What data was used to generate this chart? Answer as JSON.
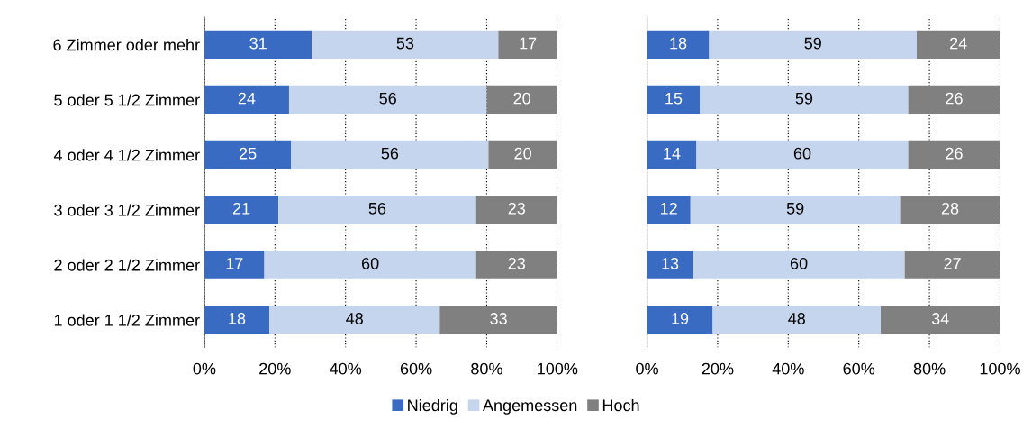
{
  "chart_data": [
    {
      "type": "bar",
      "orientation": "horizontal",
      "stacked": true,
      "categories": [
        "6 Zimmer oder mehr",
        "5 oder 5 1/2 Zimmer",
        "4 oder 4 1/2 Zimmer",
        "3 oder 3 1/2 Zimmer",
        "2 oder 2 1/2 Zimmer",
        "1 oder 1 1/2 Zimmer"
      ],
      "series": [
        {
          "name": "Niedrig",
          "color": "#3a6bc2",
          "values": [
            30.5,
            24,
            24.6,
            21,
            17,
            18.4
          ],
          "value_labels": [
            "31",
            "24",
            "25",
            "21",
            "17",
            "18"
          ]
        },
        {
          "name": "Angemessen",
          "color": "#c5d5ee",
          "values": [
            52.8,
            56,
            55.9,
            56,
            60,
            48.3
          ],
          "value_labels": [
            "53",
            "56",
            "56",
            "56",
            "60",
            "48"
          ]
        },
        {
          "name": "Hoch",
          "color": "#808080",
          "values": [
            16.7,
            20,
            19.5,
            23,
            23,
            33.3
          ],
          "value_labels": [
            "17",
            "20",
            "20",
            "23",
            "23",
            "33"
          ]
        }
      ],
      "xlim": [
        0,
        100
      ],
      "xticks": [
        {
          "value": 0,
          "label": "0%"
        },
        {
          "value": 20,
          "label": "20%"
        },
        {
          "value": 40,
          "label": "40%"
        },
        {
          "value": 60,
          "label": "60%"
        },
        {
          "value": 80,
          "label": "80%"
        },
        {
          "value": 100,
          "label": "100%"
        }
      ],
      "grid": "x",
      "legend": "bottom"
    },
    {
      "type": "bar",
      "orientation": "horizontal",
      "stacked": true,
      "categories": [
        null,
        null,
        null,
        null,
        null,
        null
      ],
      "series": [
        {
          "color": "#3a6bc2",
          "values": [
            17.6,
            15,
            14,
            12.3,
            13,
            18.6
          ],
          "value_labels": [
            "18",
            "15",
            "14",
            "12",
            "13",
            "19"
          ]
        },
        {
          "color": "#c5d5ee",
          "values": [
            58.8,
            59,
            60,
            59.4,
            60,
            47.6
          ],
          "value_labels": [
            "59",
            "59",
            "60",
            "59",
            "60",
            "48"
          ]
        },
        {
          "color": "#808080",
          "values": [
            23.6,
            26,
            26,
            28.3,
            27,
            33.8
          ],
          "value_labels": [
            "24",
            "26",
            "26",
            "28",
            "27",
            "34"
          ]
        }
      ],
      "xlim": [
        0,
        100
      ],
      "xticks": [
        {
          "value": 0,
          "label": "0%"
        },
        {
          "value": 20,
          "label": "20%"
        },
        {
          "value": 40,
          "label": "40%"
        },
        {
          "value": 60,
          "label": "60%"
        },
        {
          "value": 80,
          "label": "80%"
        },
        {
          "value": 100,
          "label": "100%"
        }
      ],
      "grid": "x"
    }
  ]
}
